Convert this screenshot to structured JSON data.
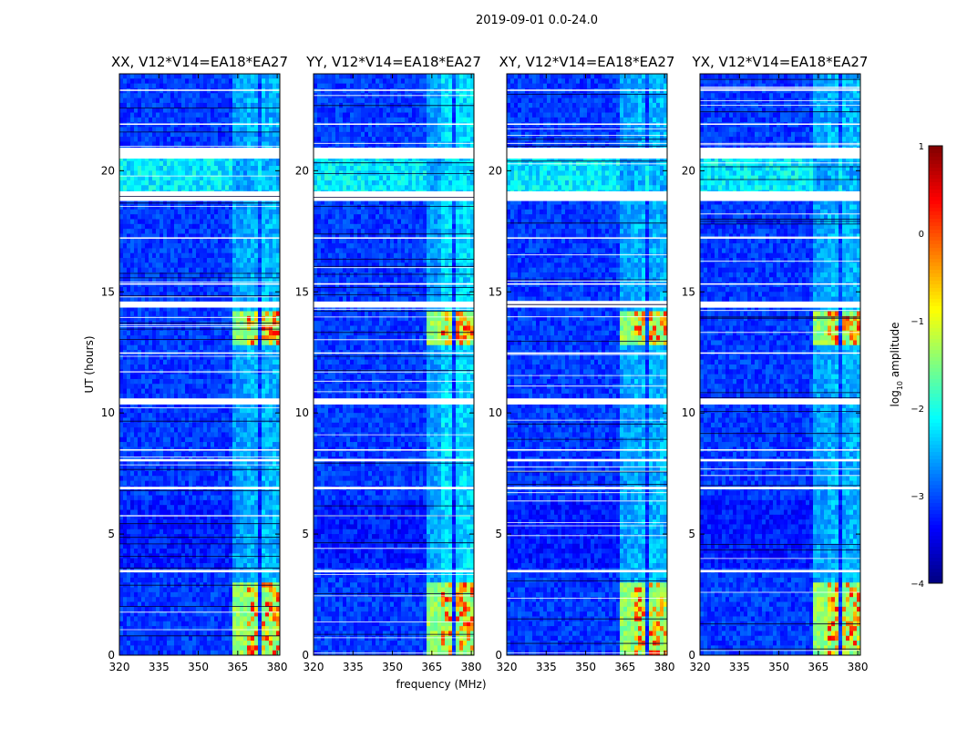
{
  "chart_data": {
    "type": "heatmap",
    "suptitle": "2019-09-01 0.0-24.0",
    "xlabel": "frequency (MHz)",
    "ylabel": "UT (hours)",
    "xlim": [
      320,
      381
    ],
    "ylim": [
      0,
      24
    ],
    "xticks": [
      320,
      335,
      350,
      365,
      380
    ],
    "yticks": [
      0,
      5,
      10,
      15,
      20
    ],
    "panels": [
      {
        "title": "XX, V12*V14=EA18*EA27"
      },
      {
        "title": "YY, V12*V14=EA18*EA27"
      },
      {
        "title": "XY, V12*V14=EA18*EA27"
      },
      {
        "title": "YX, V12*V14=EA18*EA27"
      }
    ],
    "colorbar": {
      "label": "log",
      "label_sub": "10",
      "label_rest": " amplitude",
      "range": [
        -4,
        1
      ],
      "ticks": [
        1,
        0,
        -1,
        -2,
        -3,
        -4
      ],
      "tick_labels": [
        "1",
        "0",
        "−1",
        "−2",
        "−3",
        "−4"
      ],
      "colormap": "jet"
    },
    "flagged_hours": [
      [
        20.5,
        20.95
      ],
      [
        18.75,
        19.0
      ],
      [
        18.95,
        19.15
      ],
      [
        14.35,
        14.6
      ],
      [
        10.35,
        10.6
      ],
      [
        6.85,
        6.95
      ],
      [
        3.42,
        3.52
      ],
      [
        8.0,
        8.1
      ],
      [
        8.45,
        8.5
      ],
      [
        12.45,
        12.5
      ],
      [
        15.3,
        15.35
      ],
      [
        17.2,
        17.25
      ],
      [
        21.9,
        21.95
      ],
      [
        23.3,
        23.35
      ]
    ],
    "rfi_bands_mhz": [
      [
        363,
        368
      ],
      [
        369,
        373
      ],
      [
        374.5,
        378
      ],
      [
        378.5,
        382
      ]
    ],
    "strong_rfi_hours": [
      [
        0,
        3.1
      ],
      [
        12.8,
        14.1
      ]
    ]
  }
}
